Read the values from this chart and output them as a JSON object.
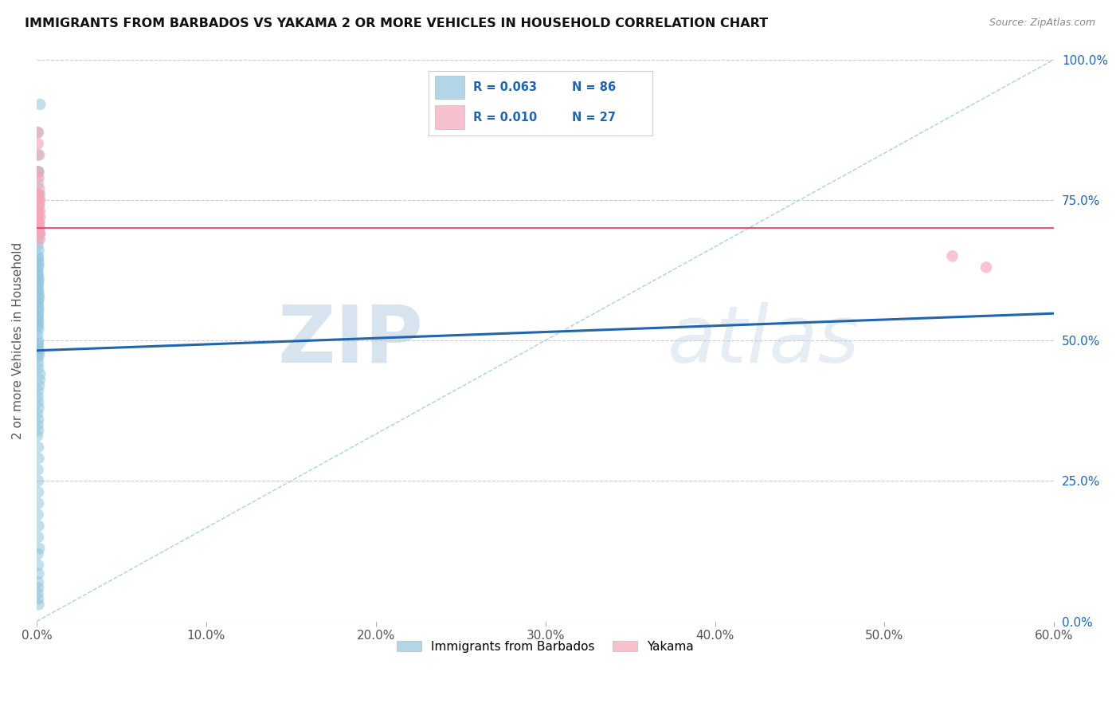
{
  "title": "IMMIGRANTS FROM BARBADOS VS YAKAMA 2 OR MORE VEHICLES IN HOUSEHOLD CORRELATION CHART",
  "source": "Source: ZipAtlas.com",
  "xlabel_ticks": [
    "0.0%",
    "10.0%",
    "20.0%",
    "30.0%",
    "40.0%",
    "50.0%",
    "60.0%"
  ],
  "ylabel_ticks": [
    "0.0%",
    "25.0%",
    "50.0%",
    "75.0%",
    "100.0%"
  ],
  "ylabel_label": "2 or more Vehicles in Household",
  "legend_label1": "Immigrants from Barbados",
  "legend_label2": "Yakama",
  "R1": 0.063,
  "N1": 86,
  "R2": 0.01,
  "N2": 27,
  "xlim": [
    0.0,
    0.6
  ],
  "ylim": [
    0.0,
    1.0
  ],
  "blue_color": "#92c5de",
  "pink_color": "#f4a6b8",
  "trend_line_blue_color": "#2166ac",
  "trend_line_pink_color": "#e8436e",
  "diagonal_color": "#92c5de",
  "watermark_zip": "ZIP",
  "watermark_atlas": "atlas",
  "blue_scatter_x": [
    0.002,
    0.001,
    0.0015,
    0.0008,
    0.0012,
    0.001,
    0.0018,
    0.0005,
    0.001,
    0.0008,
    0.0006,
    0.001,
    0.001,
    0.0008,
    0.0012,
    0.0015,
    0.001,
    0.0008,
    0.0012,
    0.001,
    0.001,
    0.001,
    0.0012,
    0.001,
    0.0005,
    0.0008,
    0.001,
    0.0012,
    0.001,
    0.001,
    0.0008,
    0.001,
    0.001,
    0.0012,
    0.0015,
    0.001,
    0.0008,
    0.001,
    0.0012,
    0.001,
    0.001,
    0.0008,
    0.001,
    0.001,
    0.0008,
    0.0012,
    0.0005,
    0.001,
    0.0008,
    0.001,
    0.001,
    0.0012,
    0.0015,
    0.0008,
    0.001,
    0.001,
    0.002,
    0.0018,
    0.0015,
    0.001,
    0.0008,
    0.001,
    0.0012,
    0.0005,
    0.001,
    0.0008,
    0.001,
    0.0005,
    0.001,
    0.0012,
    0.0008,
    0.001,
    0.001,
    0.001,
    0.0008,
    0.0012,
    0.001,
    0.0015,
    0.0008,
    0.001,
    0.0012,
    0.001,
    0.001,
    0.0008,
    0.001,
    0.0012
  ],
  "blue_scatter_y": [
    0.92,
    0.87,
    0.83,
    0.8,
    0.8,
    0.78,
    0.76,
    0.75,
    0.74,
    0.73,
    0.72,
    0.71,
    0.7,
    0.7,
    0.695,
    0.69,
    0.68,
    0.67,
    0.66,
    0.65,
    0.645,
    0.64,
    0.635,
    0.63,
    0.625,
    0.62,
    0.615,
    0.61,
    0.605,
    0.6,
    0.595,
    0.59,
    0.585,
    0.58,
    0.575,
    0.57,
    0.565,
    0.56,
    0.555,
    0.55,
    0.545,
    0.54,
    0.535,
    0.53,
    0.525,
    0.52,
    0.51,
    0.5,
    0.495,
    0.49,
    0.485,
    0.48,
    0.475,
    0.47,
    0.46,
    0.45,
    0.44,
    0.43,
    0.42,
    0.41,
    0.4,
    0.39,
    0.38,
    0.37,
    0.36,
    0.35,
    0.34,
    0.33,
    0.31,
    0.29,
    0.27,
    0.25,
    0.23,
    0.21,
    0.19,
    0.17,
    0.15,
    0.13,
    0.12,
    0.1,
    0.085,
    0.07,
    0.06,
    0.05,
    0.04,
    0.03
  ],
  "pink_scatter_x": [
    0.0005,
    0.0008,
    0.001,
    0.001,
    0.0012,
    0.0015,
    0.0008,
    0.001,
    0.0012,
    0.001,
    0.002,
    0.0015,
    0.0015,
    0.002,
    0.0018,
    0.001,
    0.0012,
    0.0015,
    0.0018,
    0.001,
    0.0015,
    0.0015,
    0.001,
    0.002,
    0.0015,
    0.54,
    0.56
  ],
  "pink_scatter_y": [
    0.87,
    0.85,
    0.83,
    0.8,
    0.79,
    0.77,
    0.76,
    0.75,
    0.74,
    0.73,
    0.72,
    0.71,
    0.7,
    0.69,
    0.68,
    0.76,
    0.75,
    0.74,
    0.73,
    0.72,
    0.71,
    0.7,
    0.76,
    0.75,
    0.69,
    0.65,
    0.63
  ],
  "blue_trend_x0": 0.0,
  "blue_trend_x1": 0.6,
  "blue_trend_y0": 0.482,
  "blue_trend_y1": 0.548,
  "pink_trend_y": 0.7
}
